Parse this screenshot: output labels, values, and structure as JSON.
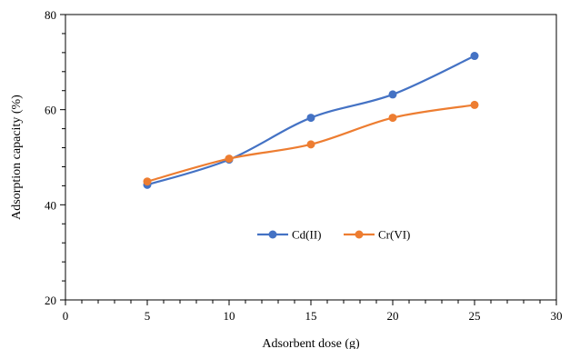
{
  "chart_data": {
    "type": "line",
    "title": "",
    "xlabel": "Adsorbent dose (g)",
    "ylabel": "Adsorption capacity (%)",
    "xlim": [
      0,
      30
    ],
    "ylim": [
      20,
      80
    ],
    "x_ticks": [
      0,
      5,
      10,
      15,
      20,
      25,
      30
    ],
    "y_ticks": [
      20,
      40,
      60,
      80
    ],
    "grid": false,
    "smooth": true,
    "legend_position": "center",
    "x": [
      5,
      10,
      15,
      20,
      25
    ],
    "series": [
      {
        "name": "Cd(II)",
        "color": "#4472C4",
        "values": [
          44.2,
          49.5,
          58.3,
          63.2,
          71.3
        ]
      },
      {
        "name": "Cr(VI)",
        "color": "#ED7D31",
        "values": [
          44.9,
          49.7,
          52.7,
          58.3,
          61.0
        ]
      }
    ]
  }
}
